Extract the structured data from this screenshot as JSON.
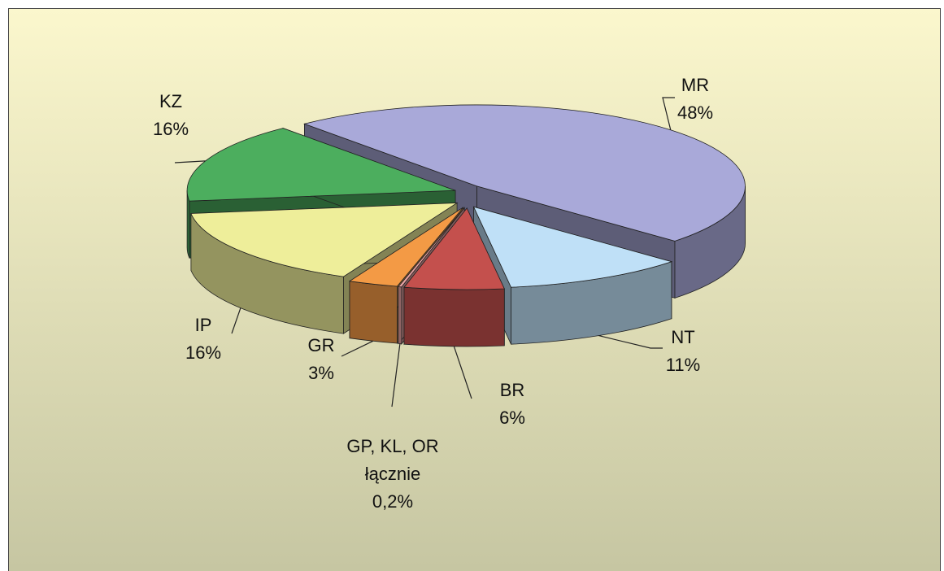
{
  "chart_data": {
    "type": "pie",
    "categories": [
      "MR",
      "NT",
      "BR",
      "GP, KL, OR łącznie",
      "GR",
      "IP",
      "KZ"
    ],
    "values": [
      48,
      11,
      6,
      0.2,
      3,
      16,
      16
    ],
    "value_labels": [
      "48%",
      "11%",
      "6%",
      "0,2%",
      "3%",
      "16%",
      "16%"
    ],
    "colors": [
      "#a9a9d9",
      "#bfe0f7",
      "#c4504d",
      "#e8a3a3",
      "#f39a45",
      "#eeee9a",
      "#4cae5e"
    ]
  }
}
